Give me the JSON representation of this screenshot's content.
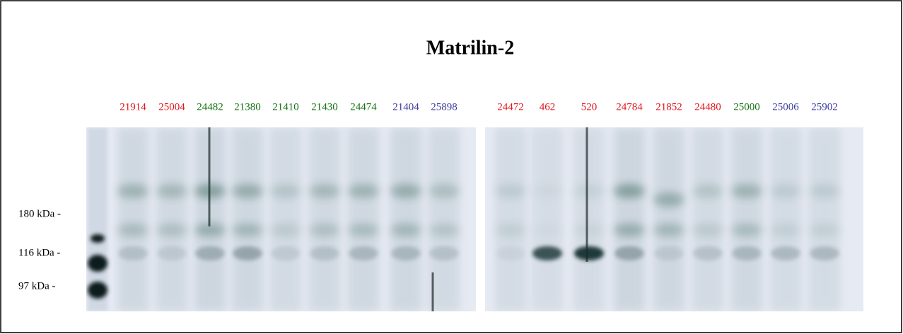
{
  "header": {
    "title": "Matrilin-2"
  },
  "markers": [
    "180 kDa -",
    "116 kDa -",
    "97 kDa -"
  ],
  "gels": [
    {
      "lanes": [
        {
          "label": "21914",
          "color": "#e3141c"
        },
        {
          "label": "25004",
          "color": "#e3141c"
        },
        {
          "label": "24482",
          "color": "#137313"
        },
        {
          "label": "21380",
          "color": "#137313"
        },
        {
          "label": "21410",
          "color": "#137313"
        },
        {
          "label": "21430",
          "color": "#137313"
        },
        {
          "label": "24474",
          "color": "#137313"
        },
        {
          "label": "21404",
          "color": "#3c3ca0"
        },
        {
          "label": "25898",
          "color": "#3c3ca0"
        }
      ]
    },
    {
      "lanes": [
        {
          "label": "24472",
          "color": "#e3141c"
        },
        {
          "label": "462",
          "color": "#e3141c"
        },
        {
          "label": "520",
          "color": "#e3141c"
        },
        {
          "label": "24784",
          "color": "#e3141c"
        },
        {
          "label": "21852",
          "color": "#e3141c"
        },
        {
          "label": "24480",
          "color": "#e3141c"
        },
        {
          "label": "25000",
          "color": "#137313"
        },
        {
          "label": "25006",
          "color": "#3c3ca0"
        },
        {
          "label": "25902",
          "color": "#3c3ca0"
        }
      ]
    }
  ]
}
